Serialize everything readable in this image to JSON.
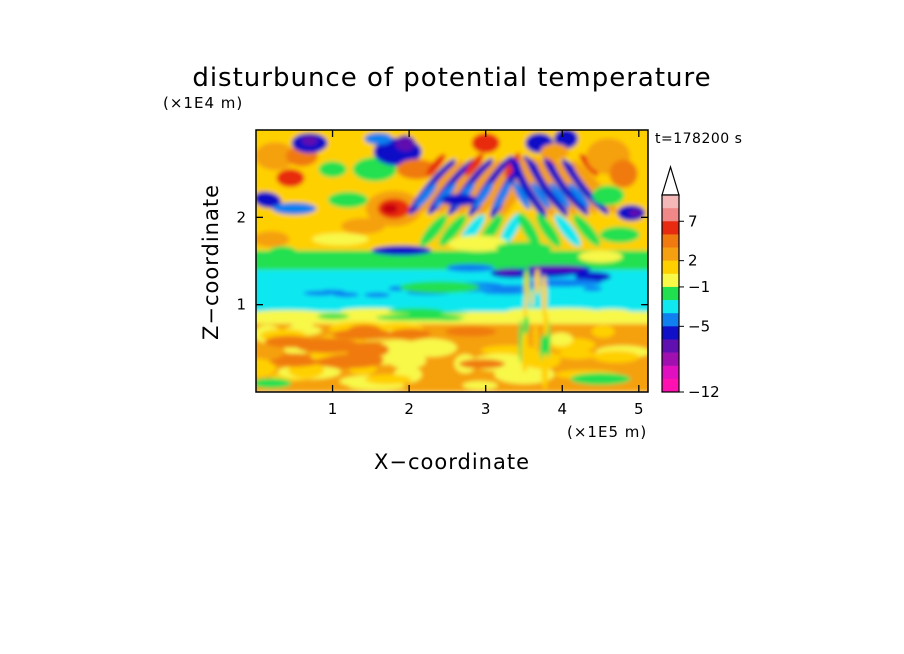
{
  "chart_data": {
    "type": "heatmap",
    "title": "disturbunce of potential temperature",
    "time_label": "t=178200 s",
    "xlabel": "X−coordinate",
    "ylabel": "Z−coordinate",
    "x_unit": "(×1E5 m)",
    "y_unit": "(×1E4 m)",
    "xlim": [
      0,
      5.12
    ],
    "ylim": [
      0,
      3.0
    ],
    "x_ticks": [
      1,
      2,
      3,
      4,
      5
    ],
    "x_tick_labels": [
      "1",
      "2",
      "3",
      "4",
      "5"
    ],
    "y_ticks": [
      1,
      2
    ],
    "y_tick_labels": [
      "1",
      "2"
    ],
    "colorbar": {
      "labeled_levels": [
        "7",
        "2",
        "−1",
        "−5",
        "−12"
      ],
      "colors_top_to_bottom": [
        "#f5b8b8",
        "#f08888",
        "#e82a10",
        "#f07a10",
        "#f5a010",
        "#ffd000",
        "#f8f848",
        "#20e050",
        "#10e8f0",
        "#1080f0",
        "#1010c8",
        "#6010b0",
        "#a010b0",
        "#e010c0",
        "#ff10b0"
      ],
      "extend": "max"
    },
    "bands": [
      {
        "z_range": [
          0.0,
          0.75
        ],
        "value": "2 to 4",
        "note": "warm layer near ground"
      },
      {
        "z_range": [
          0.75,
          0.9
        ],
        "value": "0 to 2"
      },
      {
        "z_range": [
          0.9,
          1.35
        ],
        "value": "-1 to -3",
        "note": "cool layer"
      },
      {
        "z_range": [
          1.35,
          1.5
        ],
        "value": "-5 to -7",
        "note": "cold patches near x = 3.5-4.5"
      },
      {
        "z_range": [
          1.5,
          3.0
        ],
        "value": "-7 to 9",
        "note": "wave disturbances aloft"
      }
    ]
  }
}
